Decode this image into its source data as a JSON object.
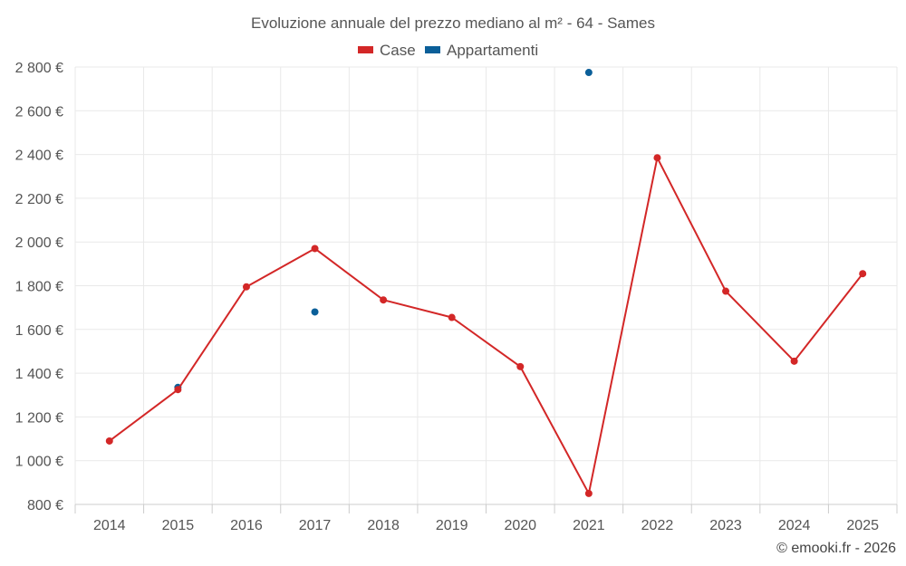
{
  "chart_data": {
    "type": "line",
    "title": "Evoluzione annuale del prezzo mediano al m² - 64 - Sames",
    "categories": [
      "2014",
      "2015",
      "2016",
      "2017",
      "2018",
      "2019",
      "2020",
      "2021",
      "2022",
      "2023",
      "2024",
      "2025"
    ],
    "series": [
      {
        "name": "Case",
        "color": "#d32727",
        "draw_line": true,
        "values": [
          1090,
          1325,
          1795,
          1970,
          1735,
          1655,
          1430,
          850,
          2385,
          1775,
          1455,
          1855
        ]
      },
      {
        "name": "Appartamenti",
        "color": "#0b5f99",
        "draw_line": false,
        "values": [
          null,
          1335,
          null,
          1680,
          null,
          null,
          null,
          2775,
          null,
          null,
          null,
          null
        ]
      }
    ],
    "y_ticks": [
      "800 €",
      "1 000 €",
      "1 200 €",
      "1 400 €",
      "1 600 €",
      "1 800 €",
      "2 000 €",
      "2 200 €",
      "2 400 €",
      "2 600 €",
      "2 800 €"
    ],
    "ylim": [
      800,
      2800
    ],
    "y_step": 200,
    "grid": true,
    "legend_position": "top-center",
    "xlabel": "",
    "ylabel": ""
  },
  "credit": "© emooki.fr - 2026"
}
